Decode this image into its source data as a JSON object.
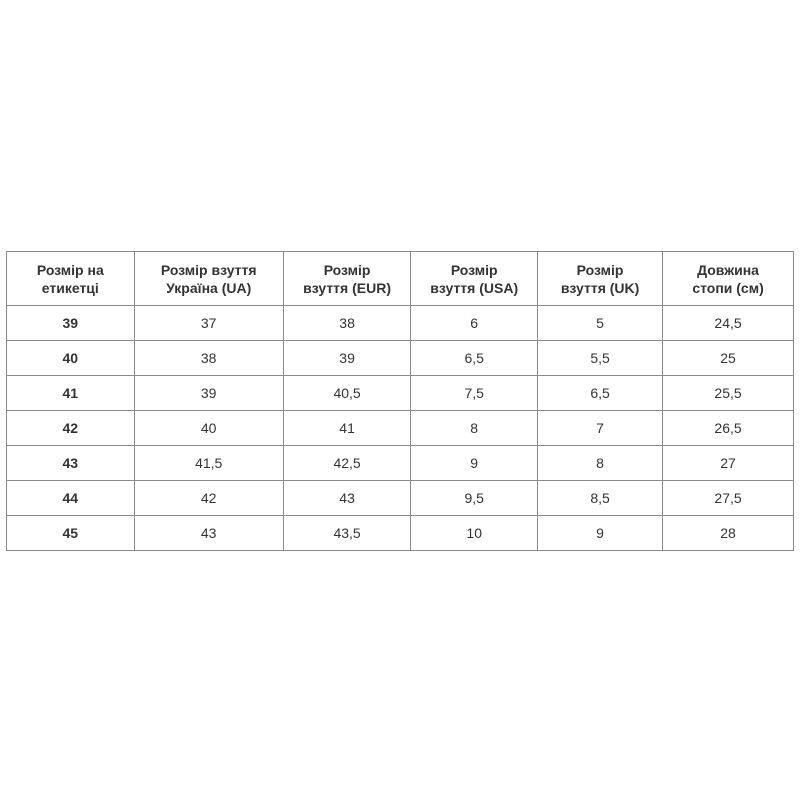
{
  "table": {
    "headers": [
      [
        "Розмір на",
        "етикетці"
      ],
      [
        "Розмір взуття",
        "Україна (UA)"
      ],
      [
        "Розмір",
        "взуття (EUR)"
      ],
      [
        "Розмір",
        "взуття (USA)"
      ],
      [
        "Розмір",
        "взуття (UK)"
      ],
      [
        "Довжина",
        "стопи (см)"
      ]
    ],
    "rows": [
      [
        "39",
        "37",
        "38",
        "6",
        "5",
        "24,5"
      ],
      [
        "40",
        "38",
        "39",
        "6,5",
        "5,5",
        "25"
      ],
      [
        "41",
        "39",
        "40,5",
        "7,5",
        "6,5",
        "25,5"
      ],
      [
        "42",
        "40",
        "41",
        "8",
        "7",
        "26,5"
      ],
      [
        "43",
        "41,5",
        "42,5",
        "9",
        "8",
        "27"
      ],
      [
        "44",
        "42",
        "43",
        "9,5",
        "8,5",
        "27,5"
      ],
      [
        "45",
        "43",
        "43,5",
        "10",
        "9",
        "28"
      ]
    ]
  }
}
